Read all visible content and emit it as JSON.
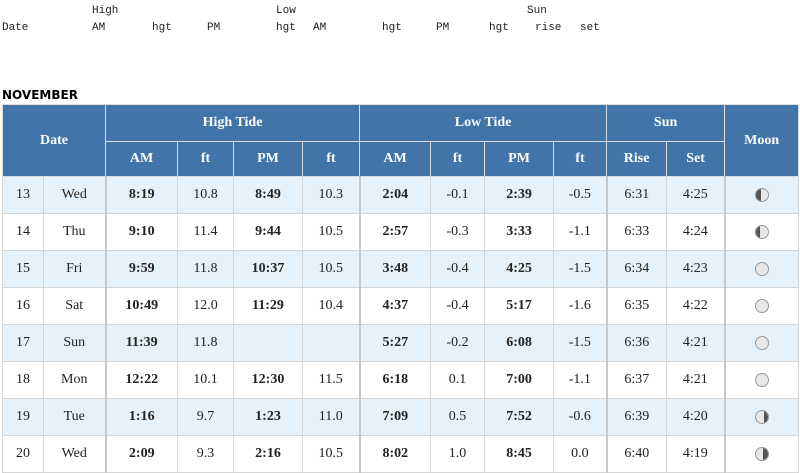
{
  "legend": {
    "line1": {
      "high": "High",
      "low": "Low",
      "sun": "Sun"
    },
    "line2": {
      "date": "Date",
      "am": "AM",
      "hgt1": "hgt",
      "pm": "PM",
      "hgt2": "hgt",
      "am2": "AM",
      "hgt3": "hgt",
      "pm2": "PM",
      "hgt4": "hgt",
      "rise": "rise",
      "set": "set"
    }
  },
  "month": "NOVEMBER",
  "headers": {
    "date": "Date",
    "high_tide": "High Tide",
    "low_tide": "Low Tide",
    "sun": "Sun",
    "moon": "Moon",
    "am": "AM",
    "ft": "ft",
    "pm": "PM",
    "rise": "Rise",
    "set": "Set"
  },
  "rows": [
    {
      "day": "13",
      "dow": "Wed",
      "high_am": "8:19",
      "high_am_ft": "10.8",
      "high_pm": "8:49",
      "high_pm_ft": "10.3",
      "low_am": "2:04",
      "low_am_ft": "-0.1",
      "low_pm": "2:39",
      "low_pm_ft": "-0.5",
      "rise": "6:31",
      "set": "4:25",
      "moon": "waxing-gibbous-icon"
    },
    {
      "day": "14",
      "dow": "Thu",
      "high_am": "9:10",
      "high_am_ft": "11.4",
      "high_pm": "9:44",
      "high_pm_ft": "10.5",
      "low_am": "2:57",
      "low_am_ft": "-0.3",
      "low_pm": "3:33",
      "low_pm_ft": "-1.1",
      "rise": "6:33",
      "set": "4:24",
      "moon": "waxing-gibbous-icon"
    },
    {
      "day": "15",
      "dow": "Fri",
      "high_am": "9:59",
      "high_am_ft": "11.8",
      "high_pm": "10:37",
      "high_pm_ft": "10.5",
      "low_am": "3:48",
      "low_am_ft": "-0.4",
      "low_pm": "4:25",
      "low_pm_ft": "-1.5",
      "rise": "6:34",
      "set": "4:23",
      "moon": "full-moon-icon"
    },
    {
      "day": "16",
      "dow": "Sat",
      "high_am": "10:49",
      "high_am_ft": "12.0",
      "high_pm": "11:29",
      "high_pm_ft": "10.4",
      "low_am": "4:37",
      "low_am_ft": "-0.4",
      "low_pm": "5:17",
      "low_pm_ft": "-1.6",
      "rise": "6:35",
      "set": "4:22",
      "moon": "full-moon-icon"
    },
    {
      "day": "17",
      "dow": "Sun",
      "high_am": "11:39",
      "high_am_ft": "11.8",
      "high_pm": "",
      "high_pm_ft": "",
      "low_am": "5:27",
      "low_am_ft": "-0.2",
      "low_pm": "6:08",
      "low_pm_ft": "-1.5",
      "rise": "6:36",
      "set": "4:21",
      "moon": "full-moon-icon"
    },
    {
      "day": "18",
      "dow": "Mon",
      "high_am": "12:22",
      "high_am_ft": "10.1",
      "high_pm": "12:30",
      "high_pm_ft": "11.5",
      "low_am": "6:18",
      "low_am_ft": "0.1",
      "low_pm": "7:00",
      "low_pm_ft": "-1.1",
      "rise": "6:37",
      "set": "4:21",
      "moon": "full-moon-icon"
    },
    {
      "day": "19",
      "dow": "Tue",
      "high_am": "1:16",
      "high_am_ft": "9.7",
      "high_pm": "1:23",
      "high_pm_ft": "11.0",
      "low_am": "7:09",
      "low_am_ft": "0.5",
      "low_pm": "7:52",
      "low_pm_ft": "-0.6",
      "rise": "6:39",
      "set": "4:20",
      "moon": "waning-gibbous-icon"
    },
    {
      "day": "20",
      "dow": "Wed",
      "high_am": "2:09",
      "high_am_ft": "9.3",
      "high_pm": "2:16",
      "high_pm_ft": "10.5",
      "low_am": "8:02",
      "low_am_ft": "1.0",
      "low_pm": "8:45",
      "low_pm_ft": "0.0",
      "rise": "6:40",
      "set": "4:19",
      "moon": "waning-gibbous-icon"
    }
  ]
}
